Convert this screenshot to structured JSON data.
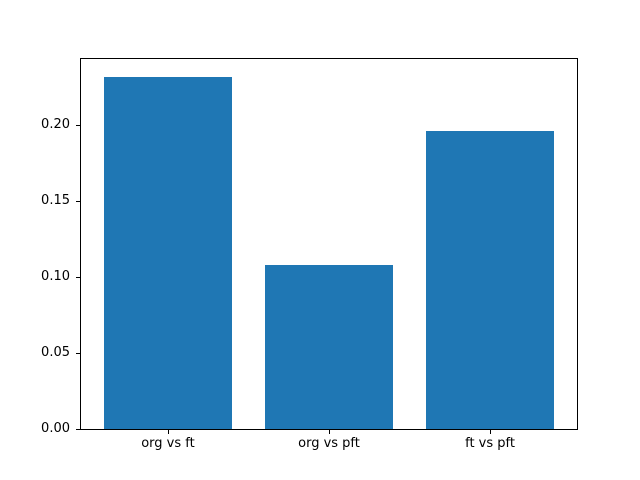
{
  "chart_data": {
    "type": "bar",
    "categories": [
      "org vs ft",
      "org vs pft",
      "ft vs pft"
    ],
    "values": [
      0.232,
      0.108,
      0.196
    ],
    "title": "",
    "xlabel": "",
    "ylabel": "",
    "ylim": [
      0,
      0.2436
    ],
    "xlim": [
      -0.54,
      2.54
    ],
    "yticks": [
      0.0,
      0.05,
      0.1,
      0.15,
      0.2
    ],
    "ytick_format_decimals": 2,
    "bar_width": 0.8,
    "bar_color": "#1f77b4",
    "grid": false,
    "legend": null
  },
  "figure": {
    "background": "#ffffff",
    "axes_edge_color": "#000000",
    "tick_color": "#000000",
    "tick_label_color": "#000000"
  }
}
